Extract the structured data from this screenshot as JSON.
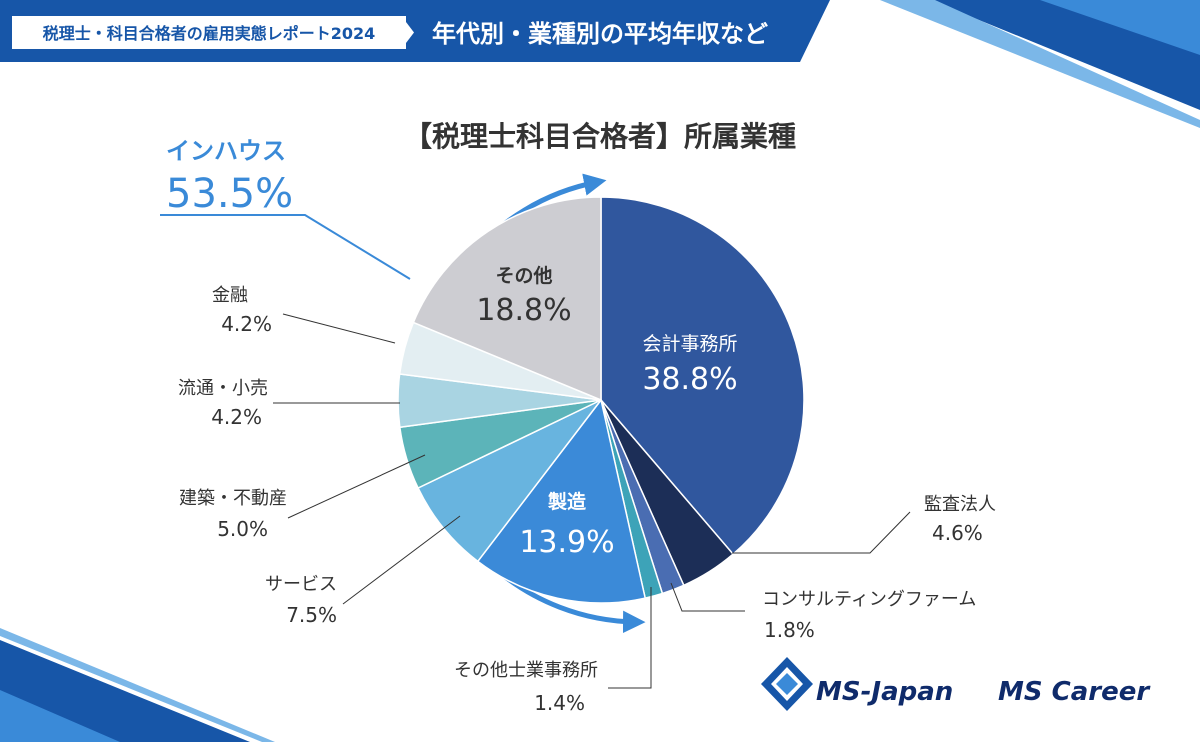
{
  "header": {
    "report_label": "税理士・科目合格者の雇用実態レポート2024",
    "subtitle": "年代別・業種別の平均年収など"
  },
  "inhouse": {
    "label": "インハウス",
    "value": "53.5%"
  },
  "logos": {
    "ms_japan": "MS-Japan",
    "ms_career": "MS Career"
  },
  "colors": {
    "header_blue": "#1756a8",
    "header_dark": "#0d3f86",
    "accent_blue": "#3a8ad8",
    "logo_navy": "#0f2b6b"
  },
  "chart_data": {
    "type": "pie",
    "title": "【税理士科目合格者】所属業種",
    "start": "12 o'clock",
    "direction": "clockwise",
    "slices": [
      {
        "name": "会計事務所",
        "value": 38.8,
        "label": "38.8%",
        "color": "#30579e",
        "label_position": "inside"
      },
      {
        "name": "監査法人",
        "value": 4.6,
        "label": "4.6%",
        "color": "#1c2e57",
        "label_position": "outside"
      },
      {
        "name": "コンサルティングファーム",
        "value": 1.8,
        "label": "1.8%",
        "color": "#4a6db2",
        "label_position": "outside"
      },
      {
        "name": "その他士業事務所",
        "value": 1.4,
        "label": "1.4%",
        "color": "#3da3b8",
        "label_position": "outside"
      },
      {
        "name": "製造",
        "value": 13.9,
        "label": "13.9%",
        "color": "#3b8ad8",
        "label_position": "inside"
      },
      {
        "name": "サービス",
        "value": 7.5,
        "label": "7.5%",
        "color": "#68b4df",
        "label_position": "outside"
      },
      {
        "name": "建築・不動産",
        "value": 5.0,
        "label": "5.0%",
        "color": "#5cb4b9",
        "label_position": "outside"
      },
      {
        "name": "流通・小売",
        "value": 4.2,
        "label": "4.2%",
        "color": "#a9d4e2",
        "label_position": "outside"
      },
      {
        "name": "金融",
        "value": 4.2,
        "label": "4.2%",
        "color": "#e3eef2",
        "label_position": "outside"
      },
      {
        "name": "その他",
        "value": 18.8,
        "label": "18.8%",
        "color": "#cdcdd2",
        "label_position": "inside"
      }
    ]
  }
}
